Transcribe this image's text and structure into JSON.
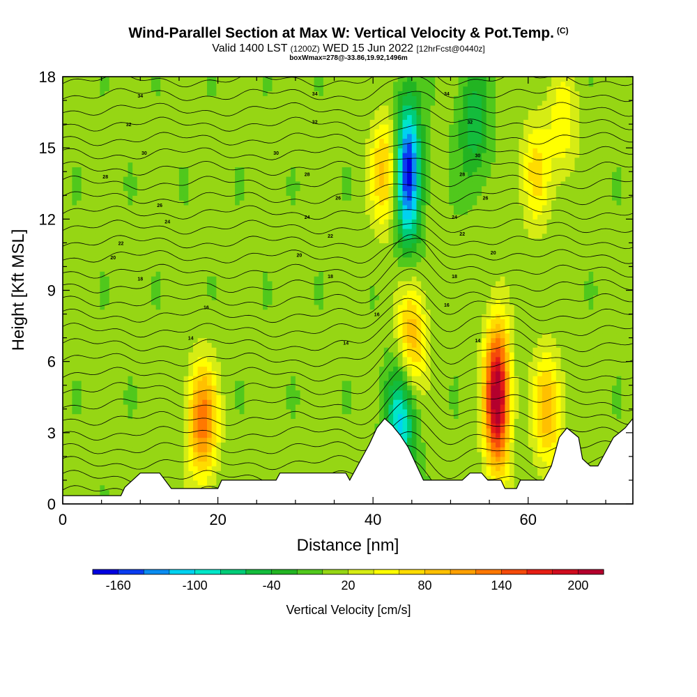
{
  "chart_data": {
    "type": "heatmap",
    "title": "Wind-Parallel Section at Max W: Vertical Velocity & Pot.Temp.",
    "title_mark": "(C)",
    "valid_prefix": "Valid 1400 LST",
    "valid_utc": "(1200Z)",
    "valid_date": "WED 15 Jun 2022",
    "valid_fcst": "[12hrFcst@0440z]",
    "box_info": "boxWmax=278@-33.86,19.92,1496m",
    "xlabel": "Distance [nm]",
    "ylabel": "Height [Kft MSL]",
    "xlim": [
      0,
      73.5
    ],
    "ylim": [
      0,
      18
    ],
    "xticks": [
      0,
      20,
      40,
      60
    ],
    "yticks": [
      0,
      3,
      6,
      9,
      12,
      15,
      18
    ],
    "colorbar": {
      "label": "Vertical Velocity [cm/s]",
      "levels": [
        -180,
        -160,
        -140,
        -120,
        -100,
        -80,
        -60,
        -40,
        -20,
        0,
        20,
        40,
        60,
        80,
        100,
        120,
        140,
        160,
        180,
        200,
        220
      ],
      "colors": [
        "#0000e0",
        "#0a3cf0",
        "#0a8cf0",
        "#00d2f0",
        "#00e6c8",
        "#00cc78",
        "#14bc3c",
        "#22b422",
        "#50c81c",
        "#96d614",
        "#d6ec14",
        "#ffff00",
        "#ffdc00",
        "#ffc000",
        "#ffa000",
        "#ff7800",
        "#f54a0a",
        "#e61e14",
        "#d00c1e",
        "#b4002d"
      ],
      "tick_labels": [
        "-160",
        "-100",
        "-40",
        "20",
        "80",
        "140",
        "200"
      ],
      "tick_values": [
        -160,
        -100,
        -40,
        20,
        80,
        140,
        200
      ]
    },
    "updraft_cores_cm_s": [
      {
        "x_nm": 18,
        "z_kft": 3.5,
        "w": 130
      },
      {
        "x_nm": 56,
        "z_kft": 4.5,
        "w": 220
      },
      {
        "x_nm": 62.5,
        "z_kft": 4.0,
        "w": 90
      },
      {
        "x_nm": 41.5,
        "z_kft": 14.0,
        "w": 80
      },
      {
        "x_nm": 45,
        "z_kft": 7.0,
        "w": 90
      },
      {
        "x_nm": 61,
        "z_kft": 14.0,
        "w": 60
      },
      {
        "x_nm": 64.5,
        "z_kft": 16.0,
        "w": 50
      }
    ],
    "downdraft_cores_cm_s": [
      {
        "x_nm": 44.5,
        "z_kft": 14.0,
        "w": -175
      },
      {
        "x_nm": 43.5,
        "z_kft": 3.5,
        "w": -110
      },
      {
        "x_nm": 53,
        "z_kft": 16.0,
        "w": -60
      }
    ],
    "terrain_kft": [
      [
        0,
        0.35
      ],
      [
        7.5,
        0.35
      ],
      [
        8,
        0.7
      ],
      [
        10,
        1.3
      ],
      [
        12.5,
        1.3
      ],
      [
        14,
        0.65
      ],
      [
        20,
        0.65
      ],
      [
        20.5,
        1.0
      ],
      [
        27.5,
        1.0
      ],
      [
        28,
        1.3
      ],
      [
        36.5,
        1.3
      ],
      [
        37,
        1.0
      ],
      [
        38,
        1.6
      ],
      [
        39.5,
        2.5
      ],
      [
        40.5,
        3.2
      ],
      [
        41.5,
        3.6
      ],
      [
        42.5,
        3.3
      ],
      [
        43.5,
        2.9
      ],
      [
        44.5,
        2.4
      ],
      [
        45.5,
        1.7
      ],
      [
        46.5,
        1.0
      ],
      [
        51.5,
        1.0
      ],
      [
        52.5,
        1.3
      ],
      [
        54,
        1.3
      ],
      [
        54.8,
        1.0
      ],
      [
        56.5,
        1.0
      ],
      [
        57,
        0.65
      ],
      [
        58.5,
        0.65
      ],
      [
        59,
        1.0
      ],
      [
        62,
        1.0
      ],
      [
        63,
        1.6
      ],
      [
        64,
        2.8
      ],
      [
        65,
        3.2
      ],
      [
        66.5,
        2.8
      ],
      [
        67,
        1.9
      ],
      [
        68,
        1.6
      ],
      [
        69,
        1.6
      ],
      [
        70,
        2.2
      ],
      [
        71,
        2.8
      ],
      [
        72.5,
        3.2
      ],
      [
        73.5,
        3.6
      ]
    ],
    "theta_isentropes_C": [
      14,
      16,
      18,
      20,
      22,
      24,
      26,
      28,
      30,
      32,
      34
    ],
    "isentrope_labels": [
      {
        "x_nm": 16.5,
        "z_kft": 7.0,
        "text": "14"
      },
      {
        "x_nm": 18.5,
        "z_kft": 8.3,
        "text": "16"
      },
      {
        "x_nm": 10,
        "z_kft": 9.5,
        "text": "18"
      },
      {
        "x_nm": 6.5,
        "z_kft": 10.4,
        "text": "20"
      },
      {
        "x_nm": 7.5,
        "z_kft": 11.0,
        "text": "22"
      },
      {
        "x_nm": 13.5,
        "z_kft": 11.9,
        "text": "24"
      },
      {
        "x_nm": 12.5,
        "z_kft": 12.6,
        "text": "26"
      },
      {
        "x_nm": 5.5,
        "z_kft": 13.8,
        "text": "28"
      },
      {
        "x_nm": 10.5,
        "z_kft": 14.8,
        "text": "30"
      },
      {
        "x_nm": 8.5,
        "z_kft": 16.0,
        "text": "32"
      },
      {
        "x_nm": 10,
        "z_kft": 17.2,
        "text": "34"
      },
      {
        "x_nm": 36.5,
        "z_kft": 6.8,
        "text": "14"
      },
      {
        "x_nm": 40.5,
        "z_kft": 8.0,
        "text": "16"
      },
      {
        "x_nm": 34.5,
        "z_kft": 9.6,
        "text": "18"
      },
      {
        "x_nm": 30.5,
        "z_kft": 10.5,
        "text": "20"
      },
      {
        "x_nm": 34.5,
        "z_kft": 11.3,
        "text": "22"
      },
      {
        "x_nm": 31.5,
        "z_kft": 12.1,
        "text": "24"
      },
      {
        "x_nm": 35.5,
        "z_kft": 12.9,
        "text": "26"
      },
      {
        "x_nm": 31.5,
        "z_kft": 13.9,
        "text": "28"
      },
      {
        "x_nm": 27.5,
        "z_kft": 14.8,
        "text": "30"
      },
      {
        "x_nm": 32.5,
        "z_kft": 16.1,
        "text": "32"
      },
      {
        "x_nm": 32.5,
        "z_kft": 17.3,
        "text": "34"
      },
      {
        "x_nm": 53.5,
        "z_kft": 6.9,
        "text": "14"
      },
      {
        "x_nm": 49.5,
        "z_kft": 8.4,
        "text": "16"
      },
      {
        "x_nm": 50.5,
        "z_kft": 9.6,
        "text": "18"
      },
      {
        "x_nm": 55.5,
        "z_kft": 10.6,
        "text": "20"
      },
      {
        "x_nm": 51.5,
        "z_kft": 11.4,
        "text": "22"
      },
      {
        "x_nm": 50.5,
        "z_kft": 12.1,
        "text": "24"
      },
      {
        "x_nm": 54.5,
        "z_kft": 12.9,
        "text": "26"
      },
      {
        "x_nm": 51.5,
        "z_kft": 13.9,
        "text": "28"
      },
      {
        "x_nm": 53.5,
        "z_kft": 14.7,
        "text": "30"
      },
      {
        "x_nm": 52.5,
        "z_kft": 16.1,
        "text": "32"
      },
      {
        "x_nm": 49.5,
        "z_kft": 17.3,
        "text": "34"
      }
    ]
  }
}
